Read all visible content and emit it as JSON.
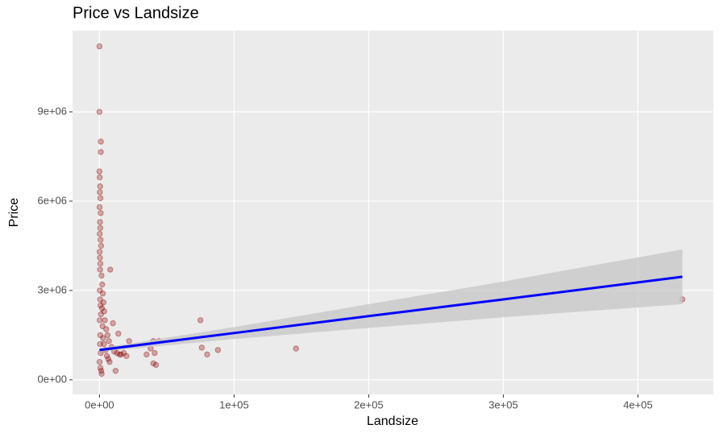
{
  "chart_data": {
    "type": "scatter",
    "title": "Price vs Landsize",
    "x_label": "Landsize",
    "y_label": "Price",
    "x": [
      433000,
      146000,
      88000,
      80000,
      76000,
      75000,
      44000,
      41000,
      40000,
      40000,
      42000,
      38000,
      35000,
      22000,
      20000,
      18000,
      15000,
      14000,
      12000,
      10000,
      8000,
      0,
      0,
      1000,
      1000,
      0,
      200,
      500,
      300,
      700,
      100,
      900,
      400,
      600,
      250,
      800,
      1200,
      150,
      350,
      650,
      450,
      1500,
      2000,
      2500,
      3000,
      3500,
      4000,
      5000,
      6000,
      7000,
      9000,
      11000,
      13000,
      16000,
      2200,
      1800,
      2700,
      3300,
      4500,
      5500,
      6500,
      7500,
      300,
      500,
      800,
      1100,
      200,
      600,
      400,
      900,
      100,
      700,
      1300,
      1600
    ],
    "y": [
      2700000,
      1050000,
      1000000,
      850000,
      1080000,
      2000000,
      1300000,
      900000,
      550000,
      1300000,
      500000,
      1050000,
      850000,
      1300000,
      800000,
      900000,
      850000,
      1550000,
      300000,
      1900000,
      3700000,
      11200000,
      9000000,
      8000000,
      7650000,
      7000000,
      6800000,
      6500000,
      6300000,
      6100000,
      5800000,
      5600000,
      5300000,
      5100000,
      4900000,
      4700000,
      4500000,
      4300000,
      4100000,
      3900000,
      3700000,
      3500000,
      3200000,
      2900000,
      2600000,
      2300000,
      2000000,
      1700000,
      1500000,
      1300000,
      1100000,
      950000,
      900000,
      850000,
      1800000,
      2400000,
      1400000,
      1200000,
      1000000,
      800000,
      700000,
      600000,
      3000000,
      2700000,
      2500000,
      2200000,
      2000000,
      1500000,
      1200000,
      900000,
      600000,
      400000,
      300000,
      200000
    ],
    "color": "#8b0000",
    "fit": {
      "color": "#0000ff",
      "band_color": "#c8c8c8",
      "x": [
        0,
        100000,
        200000,
        300000,
        433000
      ],
      "y": [
        1000000,
        1570000,
        2140000,
        2700000,
        3460000
      ],
      "lower": [
        940000,
        1370000,
        1740000,
        2100000,
        2540000
      ],
      "upper": [
        1060000,
        1770000,
        2540000,
        3300000,
        4380000
      ]
    },
    "xlim": [
      -20000,
      456000
    ],
    "ylim": [
      -490000,
      11730000
    ],
    "xticks": [
      {
        "value": 0,
        "label": "0e+00"
      },
      {
        "value": 100000,
        "label": "1e+05"
      },
      {
        "value": 200000,
        "label": "2e+05"
      },
      {
        "value": 300000,
        "label": "3e+05"
      },
      {
        "value": 400000,
        "label": "4e+05"
      }
    ],
    "yticks": [
      {
        "value": 0,
        "label": "0e+00"
      },
      {
        "value": 3000000,
        "label": "3e+06"
      },
      {
        "value": 6000000,
        "label": "6e+06"
      },
      {
        "value": 9000000,
        "label": "9e+06"
      }
    ],
    "grid": true
  }
}
